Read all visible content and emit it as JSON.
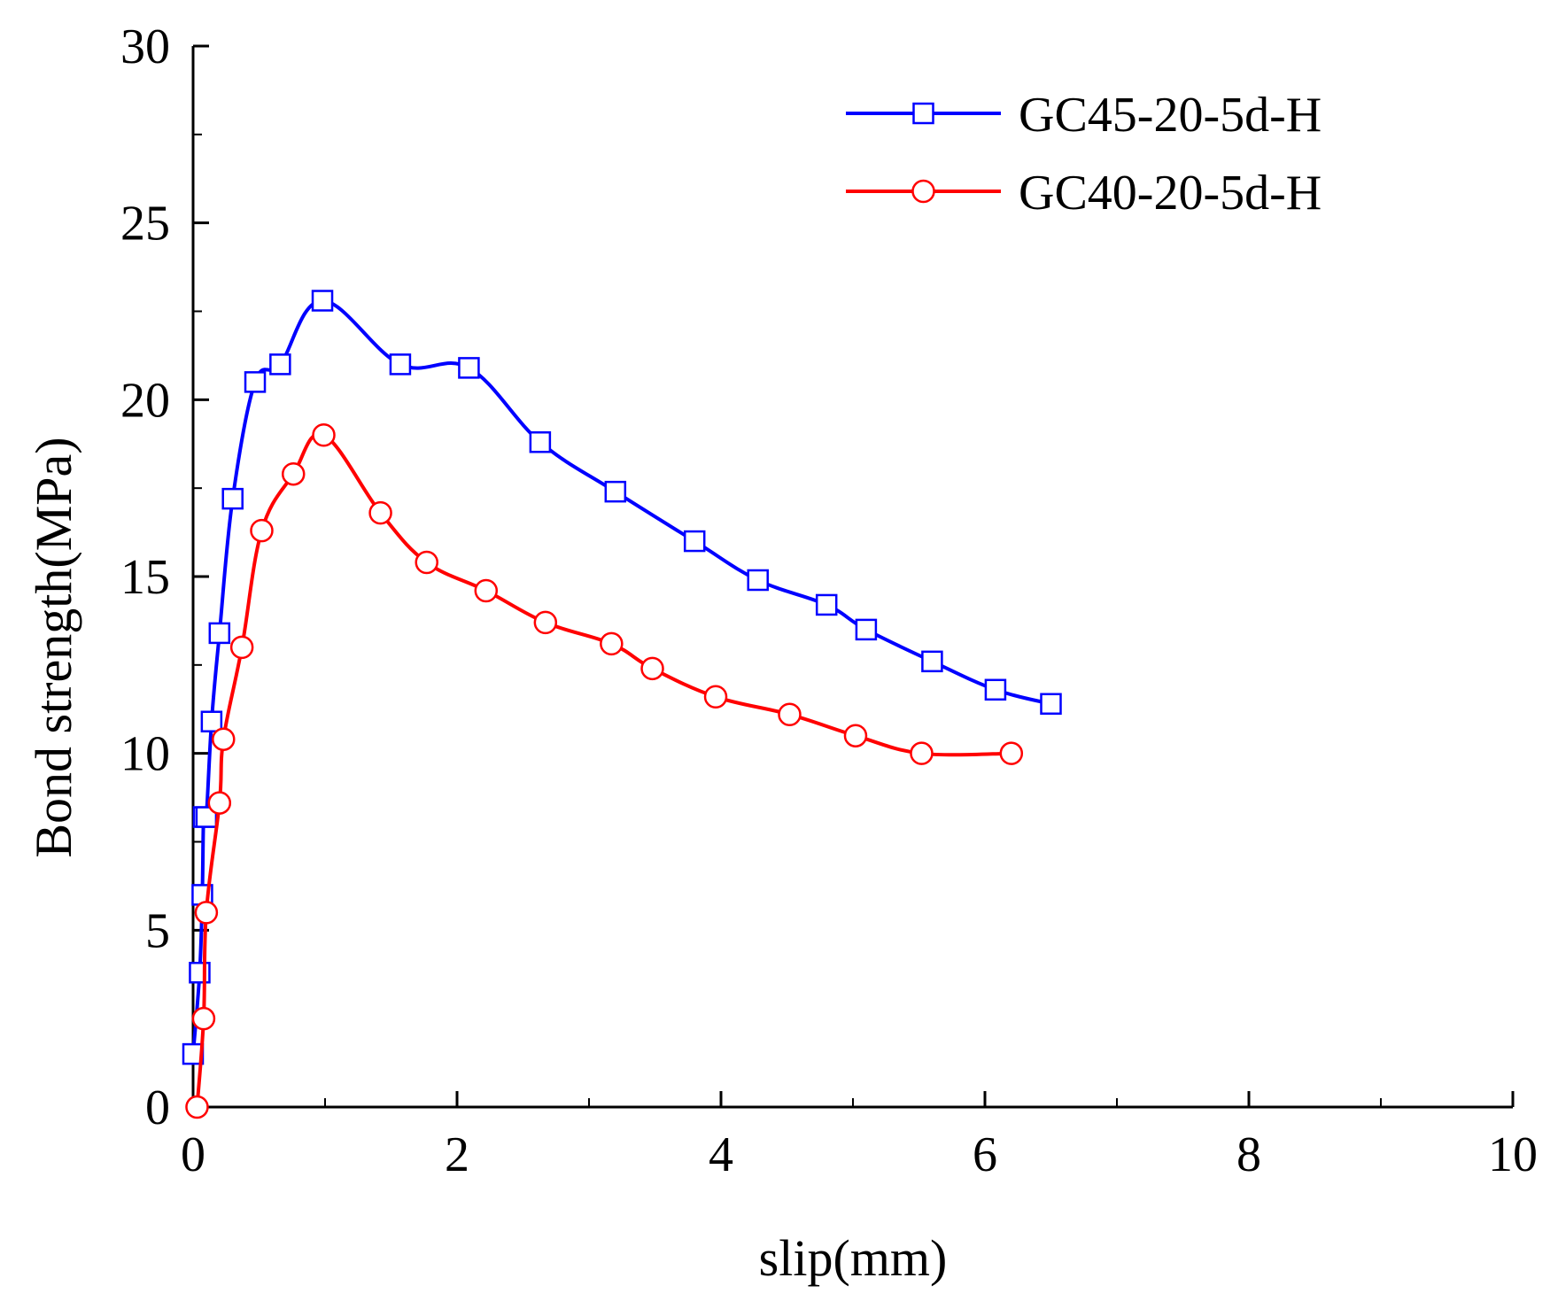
{
  "chart_data": {
    "type": "line",
    "title": "",
    "xlabel": "slip(mm)",
    "ylabel": "Bond strength(MPa)",
    "xlim": [
      0,
      10
    ],
    "ylim": [
      0,
      30
    ],
    "xticks": [
      0,
      2,
      4,
      6,
      8,
      10
    ],
    "yticks": [
      0,
      5,
      10,
      15,
      20,
      25,
      30
    ],
    "grid": false,
    "legend_position": "top-right",
    "series": [
      {
        "name": "GC45-20-5d-H",
        "color": "#0000ff",
        "marker": "square",
        "x": [
          0.0,
          0.05,
          0.07,
          0.08,
          0.1,
          0.14,
          0.2,
          0.3,
          0.47,
          0.66,
          0.98,
          1.57,
          2.09,
          2.63,
          3.2,
          3.8,
          4.28,
          4.8,
          5.1,
          5.6,
          6.08,
          6.5
        ],
        "y": [
          1.5,
          3.8,
          6.0,
          8.2,
          8.2,
          10.9,
          13.4,
          17.2,
          20.5,
          21.0,
          22.8,
          21.0,
          20.9,
          18.8,
          17.4,
          16.0,
          14.9,
          14.2,
          13.5,
          12.6,
          11.8,
          11.4
        ]
      },
      {
        "name": "GC40-20-5d-H",
        "color": "#ff0000",
        "marker": "circle",
        "x": [
          0.03,
          0.08,
          0.1,
          0.2,
          0.23,
          0.37,
          0.52,
          0.76,
          0.99,
          1.42,
          1.77,
          2.22,
          2.67,
          3.17,
          3.48,
          3.96,
          4.52,
          5.02,
          5.52,
          6.2
        ],
        "y": [
          0.0,
          2.5,
          5.5,
          8.6,
          10.4,
          13.0,
          16.3,
          17.9,
          19.0,
          16.8,
          15.4,
          14.6,
          13.7,
          13.1,
          12.4,
          11.6,
          11.1,
          10.5,
          10.0,
          10.0
        ]
      }
    ]
  }
}
